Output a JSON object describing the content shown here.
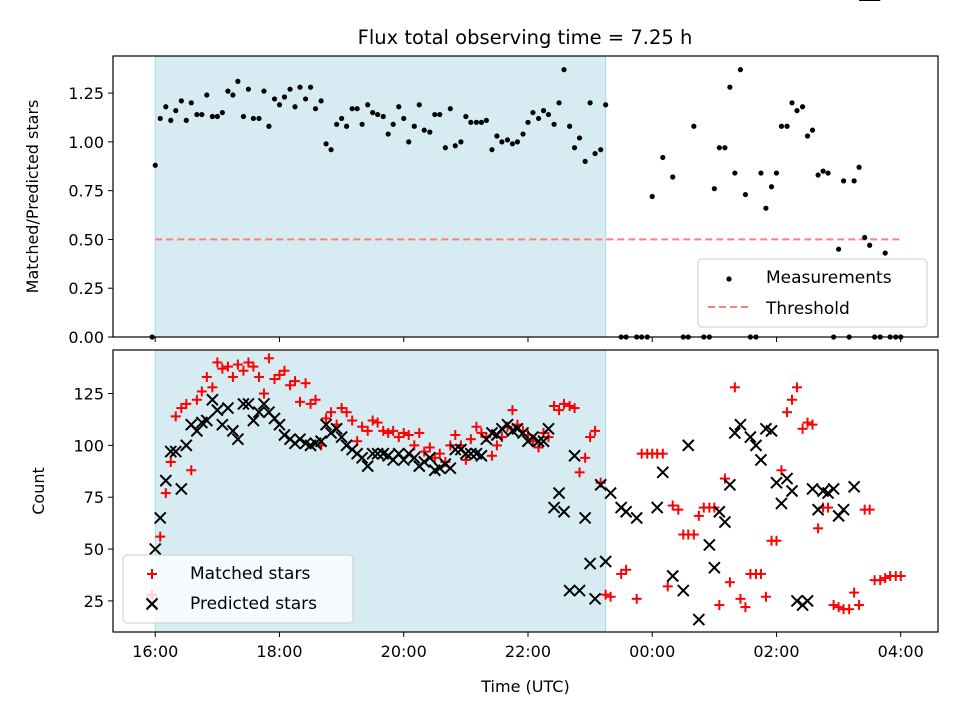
{
  "chart_data": [
    {
      "type": "scatter",
      "title": "Flux total observing time = 7.25 h",
      "xlabel": "",
      "ylabel": "Matched/Predicted stars",
      "xlim_hours_from_1600": [
        -0.68,
        12.6
      ],
      "ylim": [
        0.0,
        1.44
      ],
      "yticks": [
        0.0,
        0.25,
        0.5,
        0.75,
        1.0,
        1.25
      ],
      "ytick_labels": [
        "0.00",
        "0.25",
        "0.50",
        "0.75",
        "1.00",
        "1.25"
      ],
      "xticks_hours_from_1600": [
        0,
        2,
        4,
        6,
        8,
        10,
        12
      ],
      "shaded_span_hours_from_1600": [
        0,
        7.25
      ],
      "shaded_color": "#add8e6",
      "threshold": {
        "label": "Threshold",
        "value": 0.5,
        "x_range_hours_from_1600": [
          0,
          12
        ],
        "color": "#ff7f7f"
      },
      "legend": {
        "placement": "lower-right",
        "entries": [
          "Measurements",
          "Threshold"
        ]
      },
      "series": [
        {
          "name": "Measurements",
          "marker": "dot",
          "color": "#000000",
          "x_hours_from_1600": [
            -0.05,
            0.0,
            0.08,
            0.17,
            0.25,
            0.33,
            0.42,
            0.5,
            0.58,
            0.67,
            0.75,
            0.83,
            0.92,
            1.0,
            1.08,
            1.17,
            1.25,
            1.33,
            1.42,
            1.5,
            1.58,
            1.67,
            1.75,
            1.83,
            1.92,
            2.0,
            2.08,
            2.17,
            2.25,
            2.33,
            2.42,
            2.5,
            2.58,
            2.67,
            2.75,
            2.83,
            2.92,
            3.0,
            3.08,
            3.17,
            3.25,
            3.33,
            3.42,
            3.5,
            3.58,
            3.67,
            3.75,
            3.83,
            3.92,
            4.0,
            4.08,
            4.17,
            4.25,
            4.33,
            4.42,
            4.5,
            4.58,
            4.67,
            4.75,
            4.83,
            4.92,
            5.0,
            5.08,
            5.17,
            5.25,
            5.33,
            5.42,
            5.5,
            5.58,
            5.67,
            5.75,
            5.83,
            5.92,
            6.0,
            6.08,
            6.17,
            6.25,
            6.33,
            6.42,
            6.5,
            6.58,
            6.67,
            6.75,
            6.83,
            6.92,
            7.0,
            7.08,
            7.17,
            7.25,
            7.5,
            7.58,
            7.75,
            7.83,
            7.92,
            8.0,
            8.17,
            8.33,
            8.5,
            8.58,
            8.67,
            8.83,
            8.92,
            9.0,
            9.08,
            9.17,
            9.25,
            9.33,
            9.42,
            9.5,
            9.58,
            9.67,
            9.75,
            9.83,
            9.92,
            10.0,
            10.08,
            10.17,
            10.25,
            10.33,
            10.42,
            10.5,
            10.58,
            10.67,
            10.75,
            10.83,
            10.92,
            11.0,
            11.08,
            11.17,
            11.25,
            11.33,
            11.42,
            11.5,
            11.58,
            11.67,
            11.75,
            11.83,
            11.92,
            12.0
          ],
          "values": [
            0.0,
            0.88,
            1.12,
            1.18,
            1.11,
            1.16,
            1.21,
            1.11,
            1.2,
            1.14,
            1.14,
            1.24,
            1.13,
            1.13,
            1.15,
            1.26,
            1.24,
            1.31,
            1.13,
            1.27,
            1.12,
            1.12,
            1.26,
            1.08,
            1.22,
            1.19,
            1.23,
            1.27,
            1.18,
            1.28,
            1.22,
            1.28,
            1.17,
            1.21,
            0.99,
            0.96,
            1.09,
            1.12,
            1.08,
            1.17,
            1.17,
            1.09,
            1.19,
            1.15,
            1.14,
            1.13,
            1.04,
            1.09,
            1.18,
            1.12,
            1.0,
            1.08,
            1.19,
            1.06,
            1.05,
            1.14,
            1.14,
            0.97,
            1.17,
            0.98,
            1.0,
            1.13,
            1.1,
            1.1,
            1.1,
            1.11,
            0.96,
            1.03,
            1.0,
            1.01,
            0.99,
            1.0,
            1.04,
            1.1,
            1.15,
            1.12,
            1.16,
            1.14,
            1.09,
            1.2,
            1.37,
            1.08,
            0.97,
            1.02,
            0.9,
            1.2,
            0.94,
            0.96,
            1.19,
            0.0,
            0.0,
            0.0,
            0.0,
            0.0,
            0.72,
            0.92,
            0.82,
            0.0,
            0.0,
            1.08,
            0.0,
            0.0,
            0.76,
            0.97,
            0.97,
            1.28,
            0.84,
            1.37,
            0.73,
            0.0,
            0.0,
            0.84,
            0.66,
            0.77,
            0.84,
            1.08,
            1.08,
            1.2,
            1.16,
            1.18,
            1.03,
            1.06,
            0.83,
            0.85,
            0.84,
            0.0,
            0.45,
            0.8,
            0.0,
            0.8,
            0.87,
            0.51,
            0.47,
            0.0,
            0.0,
            0.43,
            0.0,
            0.0,
            0.0,
            0.0,
            0.0,
            0.0
          ]
        }
      ]
    },
    {
      "type": "scatter",
      "title": "",
      "xlabel": "Time (UTC)",
      "ylabel": "Count",
      "xlim_hours_from_1600": [
        -0.68,
        12.6
      ],
      "ylim": [
        10,
        146
      ],
      "yticks": [
        25,
        50,
        75,
        100,
        125
      ],
      "ytick_labels": [
        "25",
        "50",
        "75",
        "100",
        "125"
      ],
      "xticks_hours_from_1600": [
        0,
        2,
        4,
        6,
        8,
        10,
        12
      ],
      "xtick_labels": [
        "16:00",
        "18:00",
        "20:00",
        "22:00",
        "00:00",
        "02:00",
        "04:00"
      ],
      "shaded_span_hours_from_1600": [
        0,
        7.25
      ],
      "shaded_color": "#add8e6",
      "legend": {
        "placement": "lower-left",
        "entries": [
          "Matched stars",
          "Predicted stars"
        ]
      },
      "series": [
        {
          "name": "Matched stars",
          "marker": "plus",
          "color": "#ff0000",
          "x_hours_from_1600": [
            -0.05,
            0.08,
            0.17,
            0.25,
            0.33,
            0.42,
            0.5,
            0.58,
            0.67,
            0.75,
            0.83,
            0.92,
            1.0,
            1.08,
            1.17,
            1.25,
            1.33,
            1.42,
            1.5,
            1.58,
            1.67,
            1.75,
            1.83,
            1.92,
            2.0,
            2.08,
            2.17,
            2.25,
            2.33,
            2.42,
            2.5,
            2.58,
            2.67,
            2.75,
            2.83,
            2.92,
            3.0,
            3.08,
            3.17,
            3.25,
            3.33,
            3.42,
            3.5,
            3.58,
            3.67,
            3.75,
            3.83,
            3.92,
            4.0,
            4.08,
            4.17,
            4.25,
            4.33,
            4.42,
            4.5,
            4.58,
            4.67,
            4.75,
            4.83,
            4.92,
            5.0,
            5.08,
            5.17,
            5.25,
            5.33,
            5.42,
            5.5,
            5.58,
            5.67,
            5.75,
            5.83,
            5.92,
            6.0,
            6.08,
            6.17,
            6.25,
            6.33,
            6.42,
            6.5,
            6.58,
            6.67,
            6.75,
            6.83,
            6.92,
            7.0,
            7.08,
            7.17,
            7.25,
            7.33,
            7.5,
            7.58,
            7.75,
            7.83,
            7.92,
            8.0,
            8.08,
            8.17,
            8.25,
            8.33,
            8.42,
            8.5,
            8.58,
            8.67,
            8.75,
            8.83,
            8.92,
            9.0,
            9.08,
            9.17,
            9.25,
            9.33,
            9.42,
            9.5,
            9.58,
            9.67,
            9.75,
            9.83,
            9.92,
            10.0,
            10.08,
            10.17,
            10.25,
            10.33,
            10.42,
            10.5,
            10.58,
            10.67,
            10.75,
            10.83,
            10.92,
            11.0,
            11.08,
            11.17,
            11.25,
            11.33,
            11.42,
            11.5,
            11.58,
            11.67,
            11.75,
            11.83,
            11.92,
            12.0
          ],
          "values": [
            28,
            56,
            77,
            92,
            114,
            118,
            120,
            88,
            122,
            126,
            133,
            128,
            140,
            137,
            138,
            133,
            139,
            136,
            140,
            138,
            133,
            125,
            142,
            132,
            134,
            136,
            129,
            131,
            121,
            130,
            120,
            122,
            100,
            113,
            116,
            110,
            118,
            116,
            112,
            102,
            109,
            107,
            112,
            111,
            107,
            106,
            107,
            104,
            106,
            105,
            100,
            106,
            97,
            99,
            94,
            96,
            92,
            100,
            105,
            100,
            93,
            103,
            109,
            106,
            104,
            95,
            100,
            104,
            109,
            117,
            110,
            107,
            105,
            102,
            99,
            106,
            104,
            119,
            117,
            120,
            119,
            118,
            87,
            94,
            104,
            107,
            82,
            28,
            27,
            38,
            40,
            26,
            96,
            96,
            96,
            96,
            96,
            32,
            71,
            69,
            57,
            57,
            57,
            66,
            70,
            70,
            70,
            23,
            84,
            34,
            128,
            26,
            22,
            38,
            38,
            38,
            27,
            54,
            54,
            88,
            116,
            122,
            128,
            108,
            111,
            110,
            60,
            70,
            70,
            23,
            22,
            21,
            21,
            29,
            23,
            69,
            69,
            35,
            35,
            36,
            37,
            37,
            37,
            35,
            34,
            34,
            34,
            34,
            34
          ]
        },
        {
          "name": "Predicted stars",
          "marker": "x",
          "color": "#000000",
          "x_hours_from_1600": [
            -0.05,
            0.0,
            0.08,
            0.17,
            0.25,
            0.33,
            0.42,
            0.5,
            0.58,
            0.67,
            0.75,
            0.83,
            0.92,
            1.0,
            1.08,
            1.17,
            1.25,
            1.33,
            1.42,
            1.5,
            1.58,
            1.67,
            1.75,
            1.83,
            1.92,
            2.0,
            2.08,
            2.17,
            2.25,
            2.33,
            2.42,
            2.5,
            2.58,
            2.67,
            2.75,
            2.83,
            2.92,
            3.0,
            3.08,
            3.17,
            3.25,
            3.33,
            3.42,
            3.5,
            3.58,
            3.67,
            3.75,
            3.83,
            3.92,
            4.0,
            4.08,
            4.17,
            4.25,
            4.33,
            4.42,
            4.5,
            4.58,
            4.67,
            4.75,
            4.83,
            4.92,
            5.0,
            5.08,
            5.17,
            5.25,
            5.33,
            5.42,
            5.5,
            5.58,
            5.67,
            5.75,
            5.83,
            5.92,
            6.0,
            6.08,
            6.17,
            6.25,
            6.33,
            6.42,
            6.5,
            6.58,
            6.67,
            6.75,
            6.83,
            6.92,
            7.0,
            7.08,
            7.17,
            7.25,
            7.33,
            7.5,
            7.58,
            7.75,
            8.08,
            8.17,
            8.33,
            8.5,
            8.58,
            8.75,
            8.92,
            9.0,
            9.08,
            9.17,
            9.25,
            9.33,
            9.42,
            9.58,
            9.67,
            9.75,
            9.83,
            9.92,
            10.0,
            10.08,
            10.17,
            10.25,
            10.33,
            10.42,
            10.5,
            10.58,
            10.67,
            10.75,
            10.83,
            10.92,
            11.0,
            11.08,
            11.25,
            11.42,
            11.58
          ],
          "values": [
            24,
            50,
            65,
            83,
            97,
            97,
            79,
            100,
            110,
            107,
            111,
            112,
            122,
            117,
            110,
            118,
            107,
            103,
            120,
            120,
            112,
            116,
            120,
            116,
            113,
            110,
            105,
            103,
            101,
            103,
            101,
            100,
            101,
            102,
            110,
            106,
            108,
            104,
            100,
            98,
            96,
            94,
            90,
            96,
            96,
            96,
            95,
            93,
            96,
            93,
            96,
            94,
            90,
            92,
            94,
            88,
            89,
            91,
            89,
            98,
            98,
            96,
            96,
            96,
            95,
            103,
            106,
            105,
            108,
            110,
            107,
            108,
            106,
            102,
            104,
            102,
            102,
            108,
            70,
            77,
            68,
            30,
            95,
            30,
            65,
            43,
            26,
            81,
            44,
            77,
            70,
            68,
            65,
            70,
            87,
            37,
            30,
            100,
            16,
            52,
            41,
            68,
            63,
            81,
            106,
            110,
            104,
            100,
            93,
            108,
            107,
            82,
            72,
            84,
            78,
            25,
            23,
            25,
            79,
            69,
            78,
            77,
            79,
            66,
            69,
            80
          ]
        }
      ]
    }
  ],
  "figure": {
    "title": "Flux total observing time = 7.25 h"
  }
}
